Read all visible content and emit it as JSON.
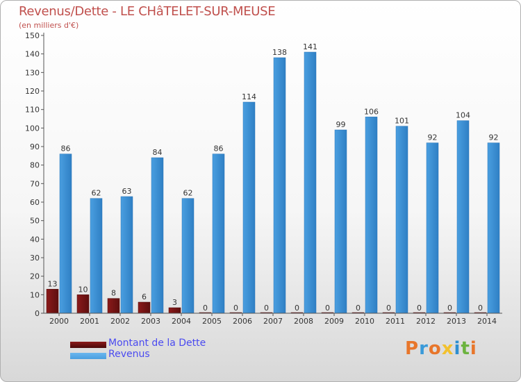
{
  "chart_data": {
    "type": "bar",
    "title": "Revenus/Dette - LE CHâTELET-SUR-MEUSE",
    "subtitle": "(en milliers d'€)",
    "categories": [
      "2000",
      "2001",
      "2002",
      "2003",
      "2004",
      "2005",
      "2006",
      "2007",
      "2008",
      "2009",
      "2010",
      "2011",
      "2012",
      "2013",
      "2014"
    ],
    "series": [
      {
        "name": "Montant de la Dette",
        "color": "#8b1a1a",
        "values": [
          13,
          10,
          8,
          6,
          3,
          0,
          0,
          0,
          0,
          0,
          0,
          0,
          0,
          0,
          0
        ]
      },
      {
        "name": "Revenus",
        "color": "#4a9fe0",
        "values": [
          86,
          62,
          63,
          84,
          62,
          86,
          114,
          138,
          141,
          99,
          106,
          101,
          92,
          104,
          92
        ]
      }
    ],
    "ylim": [
      0,
      150
    ],
    "yticks": [
      0,
      10,
      20,
      30,
      40,
      50,
      60,
      70,
      80,
      90,
      100,
      110,
      120,
      130,
      140,
      150
    ],
    "grid": false,
    "legend": "bottom-left"
  },
  "logo": {
    "text": "Proxiti",
    "colors": [
      "#e8762b",
      "#3a9ad9",
      "#e8762b",
      "#f2c12e",
      "#2f8fd0",
      "#6cb33f",
      "#e8762b"
    ]
  }
}
